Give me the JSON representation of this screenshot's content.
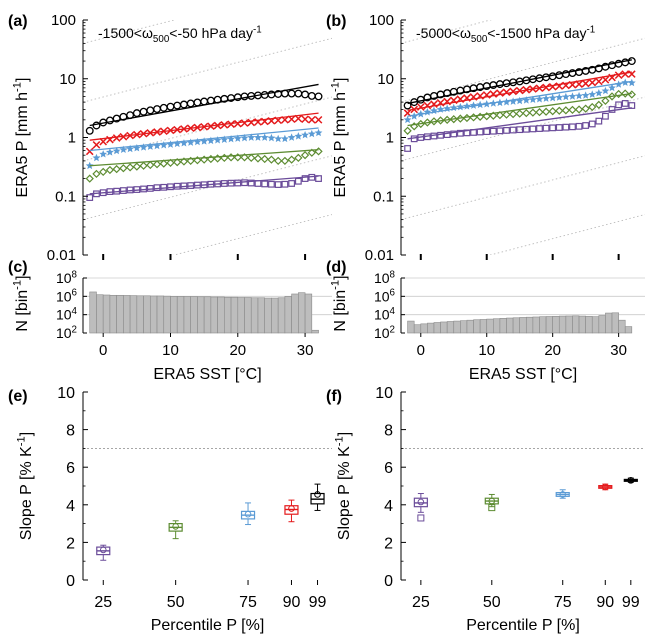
{
  "figure": {
    "panel_labels": [
      "(a)",
      "(b)",
      "(c)",
      "(d)",
      "(e)",
      "(f)"
    ]
  },
  "chart_data": [
    {
      "panel": "(a)",
      "type": "scatter",
      "annotation": "-1500<ω500<-50 hPa day-1",
      "ylabel": "ERA5 P [mm h-1]",
      "xlabel": "",
      "yscale": "log",
      "ylim": [
        0.01,
        100
      ],
      "xlim": [
        -3,
        34
      ],
      "yticks": [
        "0.01",
        "0.1",
        "1",
        "10",
        "100"
      ],
      "x": [
        -2,
        -1,
        0,
        1,
        2,
        3,
        4,
        5,
        6,
        7,
        8,
        9,
        10,
        11,
        12,
        13,
        14,
        15,
        16,
        17,
        18,
        19,
        20,
        21,
        22,
        23,
        24,
        25,
        26,
        27,
        28,
        29,
        30,
        31,
        32
      ],
      "series": [
        {
          "percentile": "99",
          "color": "#000000",
          "marker": "circle",
          "values": [
            1.3,
            1.6,
            1.8,
            1.95,
            2.1,
            2.25,
            2.4,
            2.6,
            2.75,
            2.9,
            3.05,
            3.2,
            3.35,
            3.5,
            3.65,
            3.8,
            3.95,
            4.1,
            4.25,
            4.4,
            4.55,
            4.7,
            4.85,
            5.0,
            5.1,
            5.2,
            5.3,
            5.4,
            5.5,
            5.6,
            5.6,
            5.6,
            5.4,
            5.1,
            5.0
          ],
          "fit": [
            1.6,
            8.0
          ]
        },
        {
          "percentile": "90",
          "color": "#e41a1c",
          "marker": "x",
          "values": [
            0.58,
            0.75,
            0.85,
            0.92,
            0.98,
            1.03,
            1.08,
            1.12,
            1.16,
            1.2,
            1.24,
            1.28,
            1.32,
            1.36,
            1.4,
            1.44,
            1.48,
            1.52,
            1.56,
            1.6,
            1.64,
            1.68,
            1.72,
            1.76,
            1.8,
            1.84,
            1.88,
            1.92,
            1.96,
            2.0,
            2.05,
            2.1,
            2.05,
            2.0,
            2.0
          ],
          "fit": [
            0.9,
            2.6
          ]
        },
        {
          "percentile": "75",
          "color": "#5b9bd5",
          "marker": "star",
          "values": [
            0.33,
            0.45,
            0.52,
            0.56,
            0.59,
            0.62,
            0.64,
            0.66,
            0.68,
            0.7,
            0.72,
            0.74,
            0.76,
            0.78,
            0.8,
            0.82,
            0.84,
            0.86,
            0.88,
            0.9,
            0.92,
            0.94,
            0.96,
            0.98,
            1.0,
            1.0,
            1.0,
            0.98,
            0.95,
            0.95,
            1.0,
            1.05,
            1.1,
            1.15,
            1.2
          ],
          "fit": [
            0.6,
            1.45
          ]
        },
        {
          "percentile": "50",
          "color": "#5d8c32",
          "marker": "diamond",
          "values": [
            0.2,
            0.24,
            0.26,
            0.28,
            0.29,
            0.3,
            0.31,
            0.32,
            0.33,
            0.34,
            0.35,
            0.36,
            0.37,
            0.38,
            0.39,
            0.4,
            0.41,
            0.42,
            0.43,
            0.44,
            0.45,
            0.46,
            0.46,
            0.46,
            0.45,
            0.44,
            0.43,
            0.42,
            0.4,
            0.4,
            0.42,
            0.45,
            0.5,
            0.55,
            0.58
          ],
          "fit": [
            0.33,
            0.62
          ]
        },
        {
          "percentile": "25",
          "color": "#6b4c9a",
          "marker": "square",
          "values": [
            0.095,
            0.11,
            0.115,
            0.12,
            0.122,
            0.125,
            0.128,
            0.13,
            0.133,
            0.136,
            0.14,
            0.142,
            0.145,
            0.148,
            0.15,
            0.152,
            0.155,
            0.157,
            0.16,
            0.162,
            0.165,
            0.167,
            0.168,
            0.17,
            0.168,
            0.165,
            0.162,
            0.16,
            0.158,
            0.16,
            0.165,
            0.18,
            0.2,
            0.21,
            0.2
          ],
          "fit": [
            0.11,
            0.22
          ]
        }
      ],
      "reference_lines": "dotted grey Clausius-Clapeyron-style slope lines"
    },
    {
      "panel": "(b)",
      "type": "scatter",
      "annotation": "-5000<ω500<-1500 hPa day-1",
      "ylabel": "ERA5 P [mm h-1]",
      "xlabel": "",
      "yscale": "log",
      "ylim": [
        0.01,
        100
      ],
      "xlim": [
        -3,
        34
      ],
      "yticks": [
        "0.01",
        "0.1",
        "1",
        "10",
        "100"
      ],
      "x": [
        -2,
        -1,
        0,
        1,
        2,
        3,
        4,
        5,
        6,
        7,
        8,
        9,
        10,
        11,
        12,
        13,
        14,
        15,
        16,
        17,
        18,
        19,
        20,
        21,
        22,
        23,
        24,
        25,
        26,
        27,
        28,
        29,
        30,
        31,
        32
      ],
      "series": [
        {
          "percentile": "99",
          "color": "#000000",
          "marker": "circle",
          "values": [
            3.5,
            4.0,
            4.4,
            4.8,
            5.1,
            5.4,
            5.7,
            6.0,
            6.3,
            6.6,
            6.9,
            7.2,
            7.5,
            7.8,
            8.1,
            8.4,
            8.7,
            9.0,
            9.4,
            9.8,
            10.2,
            10.6,
            11.0,
            11.5,
            12.0,
            12.5,
            13.0,
            13.6,
            14.2,
            15.0,
            16.0,
            17.0,
            18.0,
            19.0,
            20.0
          ],
          "fit": [
            3.8,
            21.0
          ]
        },
        {
          "percentile": "90",
          "color": "#e41a1c",
          "marker": "x",
          "values": [
            2.6,
            3.0,
            3.3,
            3.5,
            3.7,
            3.9,
            4.1,
            4.3,
            4.5,
            4.7,
            4.9,
            5.1,
            5.3,
            5.5,
            5.7,
            5.9,
            6.1,
            6.3,
            6.5,
            6.7,
            6.9,
            7.1,
            7.3,
            7.5,
            7.7,
            7.9,
            8.1,
            8.3,
            8.6,
            9.0,
            9.6,
            10.5,
            11.5,
            12.0,
            12.0
          ],
          "fit": [
            2.9,
            13.0
          ]
        },
        {
          "percentile": "75",
          "color": "#5b9bd5",
          "marker": "star",
          "values": [
            2.0,
            2.3,
            2.5,
            2.7,
            2.85,
            3.0,
            3.1,
            3.2,
            3.3,
            3.4,
            3.5,
            3.6,
            3.7,
            3.8,
            3.9,
            4.0,
            4.1,
            4.2,
            4.3,
            4.4,
            4.5,
            4.6,
            4.7,
            4.8,
            4.9,
            5.0,
            5.1,
            5.2,
            5.4,
            5.7,
            6.2,
            7.0,
            8.0,
            8.6,
            8.5
          ],
          "fit": [
            2.3,
            9.0
          ]
        },
        {
          "percentile": "50",
          "color": "#5d8c32",
          "marker": "diamond",
          "values": [
            1.3,
            1.55,
            1.7,
            1.8,
            1.88,
            1.95,
            2.0,
            2.05,
            2.1,
            2.15,
            2.2,
            2.25,
            2.3,
            2.35,
            2.4,
            2.45,
            2.5,
            2.55,
            2.6,
            2.65,
            2.7,
            2.75,
            2.8,
            2.85,
            2.9,
            2.95,
            3.0,
            3.1,
            3.3,
            3.6,
            4.2,
            5.0,
            5.5,
            5.6,
            5.4
          ],
          "fit": [
            1.6,
            5.6
          ]
        },
        {
          "percentile": "25",
          "color": "#6b4c9a",
          "marker": "square",
          "values": [
            0.65,
            0.95,
            1.0,
            1.03,
            1.06,
            1.09,
            1.12,
            1.15,
            1.18,
            1.2,
            1.22,
            1.24,
            1.26,
            1.28,
            1.3,
            1.32,
            1.34,
            1.36,
            1.38,
            1.4,
            1.42,
            1.44,
            1.46,
            1.48,
            1.5,
            1.52,
            1.55,
            1.6,
            1.7,
            1.9,
            2.3,
            3.0,
            3.6,
            3.8,
            3.5
          ],
          "fit": [
            0.95,
            3.2
          ]
        }
      ],
      "reference_lines": "dotted grey Clausius-Clapeyron-style slope lines"
    },
    {
      "panel": "(c)",
      "type": "bar",
      "ylabel": "N [bin-1]",
      "xlabel": "ERA5 SST [°C]",
      "yscale": "log",
      "ylim": [
        100,
        100000000
      ],
      "xticks": [
        "0",
        "10",
        "20",
        "30"
      ],
      "yticks": [
        "10^2",
        "10^4",
        "10^6",
        "10^8"
      ],
      "x": [
        -2,
        -1,
        0,
        1,
        2,
        3,
        4,
        5,
        6,
        7,
        8,
        9,
        10,
        11,
        12,
        13,
        14,
        15,
        16,
        17,
        18,
        19,
        20,
        21,
        22,
        23,
        24,
        25,
        26,
        27,
        28,
        29,
        30,
        31
      ],
      "values": [
        3000000,
        1500000,
        1400000,
        1300000,
        1300000,
        1250000,
        1200000,
        1150000,
        1150000,
        1100000,
        1100000,
        1050000,
        1000000,
        1000000,
        950000,
        950000,
        900000,
        900000,
        850000,
        850000,
        800000,
        800000,
        750000,
        750000,
        700000,
        700000,
        650000,
        650000,
        700000,
        1000000,
        1800000,
        2500000,
        1800000,
        200
      ]
    },
    {
      "panel": "(d)",
      "type": "bar",
      "ylabel": "N [bin-1]",
      "xlabel": "ERA5 SST [°C]",
      "yscale": "log",
      "ylim": [
        100,
        100000000
      ],
      "xticks": [
        "0",
        "10",
        "20",
        "30"
      ],
      "yticks": [
        "10^2",
        "10^4",
        "10^6",
        "10^8"
      ],
      "x": [
        -2,
        -1,
        0,
        1,
        2,
        3,
        4,
        5,
        6,
        7,
        8,
        9,
        10,
        11,
        12,
        13,
        14,
        15,
        16,
        17,
        18,
        19,
        20,
        21,
        22,
        23,
        24,
        25,
        26,
        27,
        28,
        29,
        30,
        31
      ],
      "values": [
        2000,
        800,
        1000,
        1200,
        1400,
        1600,
        1800,
        2000,
        2200,
        2500,
        2800,
        3000,
        3300,
        3600,
        4000,
        4300,
        4600,
        5000,
        5300,
        5600,
        6000,
        6300,
        6600,
        7000,
        7200,
        7500,
        7000,
        6500,
        6000,
        8000,
        15000,
        16000,
        2500,
        500
      ]
    },
    {
      "panel": "(e)",
      "type": "box",
      "ylabel": "Slope P [% K-1]",
      "xlabel": "Percentile P [%]",
      "ylim": [
        0,
        10
      ],
      "yticks": [
        "0",
        "2",
        "4",
        "6",
        "8",
        "10"
      ],
      "xticks": [
        "25",
        "50",
        "75",
        "90",
        "99"
      ],
      "reference_line": 7,
      "boxes": [
        {
          "percentile": 25,
          "color": "#6b4c9a",
          "median": 1.55,
          "q1": 1.35,
          "q3": 1.75,
          "whisker_low": 1.05,
          "whisker_high": 1.85,
          "mean": 1.6,
          "outliers": []
        },
        {
          "percentile": 50,
          "color": "#5d8c32",
          "median": 2.8,
          "q1": 2.6,
          "q3": 3.0,
          "whisker_low": 2.2,
          "whisker_high": 3.15,
          "mean": 2.85,
          "outliers": []
        },
        {
          "percentile": 75,
          "color": "#5b9bd5",
          "median": 3.45,
          "q1": 3.25,
          "q3": 3.65,
          "whisker_low": 2.95,
          "whisker_high": 4.1,
          "mean": 3.5,
          "outliers": []
        },
        {
          "percentile": 90,
          "color": "#e41a1c",
          "median": 3.75,
          "q1": 3.5,
          "q3": 3.95,
          "whisker_low": 3.1,
          "whisker_high": 4.25,
          "mean": 3.8,
          "outliers": []
        },
        {
          "percentile": 99,
          "color": "#000000",
          "median": 4.3,
          "q1": 4.05,
          "q3": 4.6,
          "whisker_low": 3.7,
          "whisker_high": 5.1,
          "mean": 4.55,
          "outliers": []
        }
      ]
    },
    {
      "panel": "(f)",
      "type": "box",
      "ylabel": "Slope P [% K-1]",
      "xlabel": "Percentile P [%]",
      "ylim": [
        0,
        10
      ],
      "yticks": [
        "0",
        "2",
        "4",
        "6",
        "8",
        "10"
      ],
      "xticks": [
        "25",
        "50",
        "75",
        "90",
        "99"
      ],
      "reference_line": 7,
      "boxes": [
        {
          "percentile": 25,
          "color": "#6b4c9a",
          "median": 4.1,
          "q1": 3.9,
          "q3": 4.35,
          "whisker_low": 3.6,
          "whisker_high": 4.6,
          "mean": 4.15,
          "outliers": [
            3.3
          ]
        },
        {
          "percentile": 50,
          "color": "#5d8c32",
          "median": 4.2,
          "q1": 4.05,
          "q3": 4.35,
          "whisker_low": 3.9,
          "whisker_high": 4.55,
          "mean": 4.2,
          "outliers": [
            3.85
          ]
        },
        {
          "percentile": 75,
          "color": "#5b9bd5",
          "median": 4.55,
          "q1": 4.45,
          "q3": 4.65,
          "whisker_low": 4.35,
          "whisker_high": 4.8,
          "mean": 4.55,
          "outliers": []
        },
        {
          "percentile": 90,
          "color": "#e41a1c",
          "median": 4.95,
          "q1": 4.88,
          "q3": 5.02,
          "whisker_low": 4.8,
          "whisker_high": 5.1,
          "mean": 4.95,
          "outliers": []
        },
        {
          "percentile": 99,
          "color": "#000000",
          "median": 5.3,
          "q1": 5.25,
          "q3": 5.35,
          "whisker_low": 5.2,
          "whisker_high": 5.42,
          "mean": 5.3,
          "outliers": []
        }
      ]
    }
  ]
}
